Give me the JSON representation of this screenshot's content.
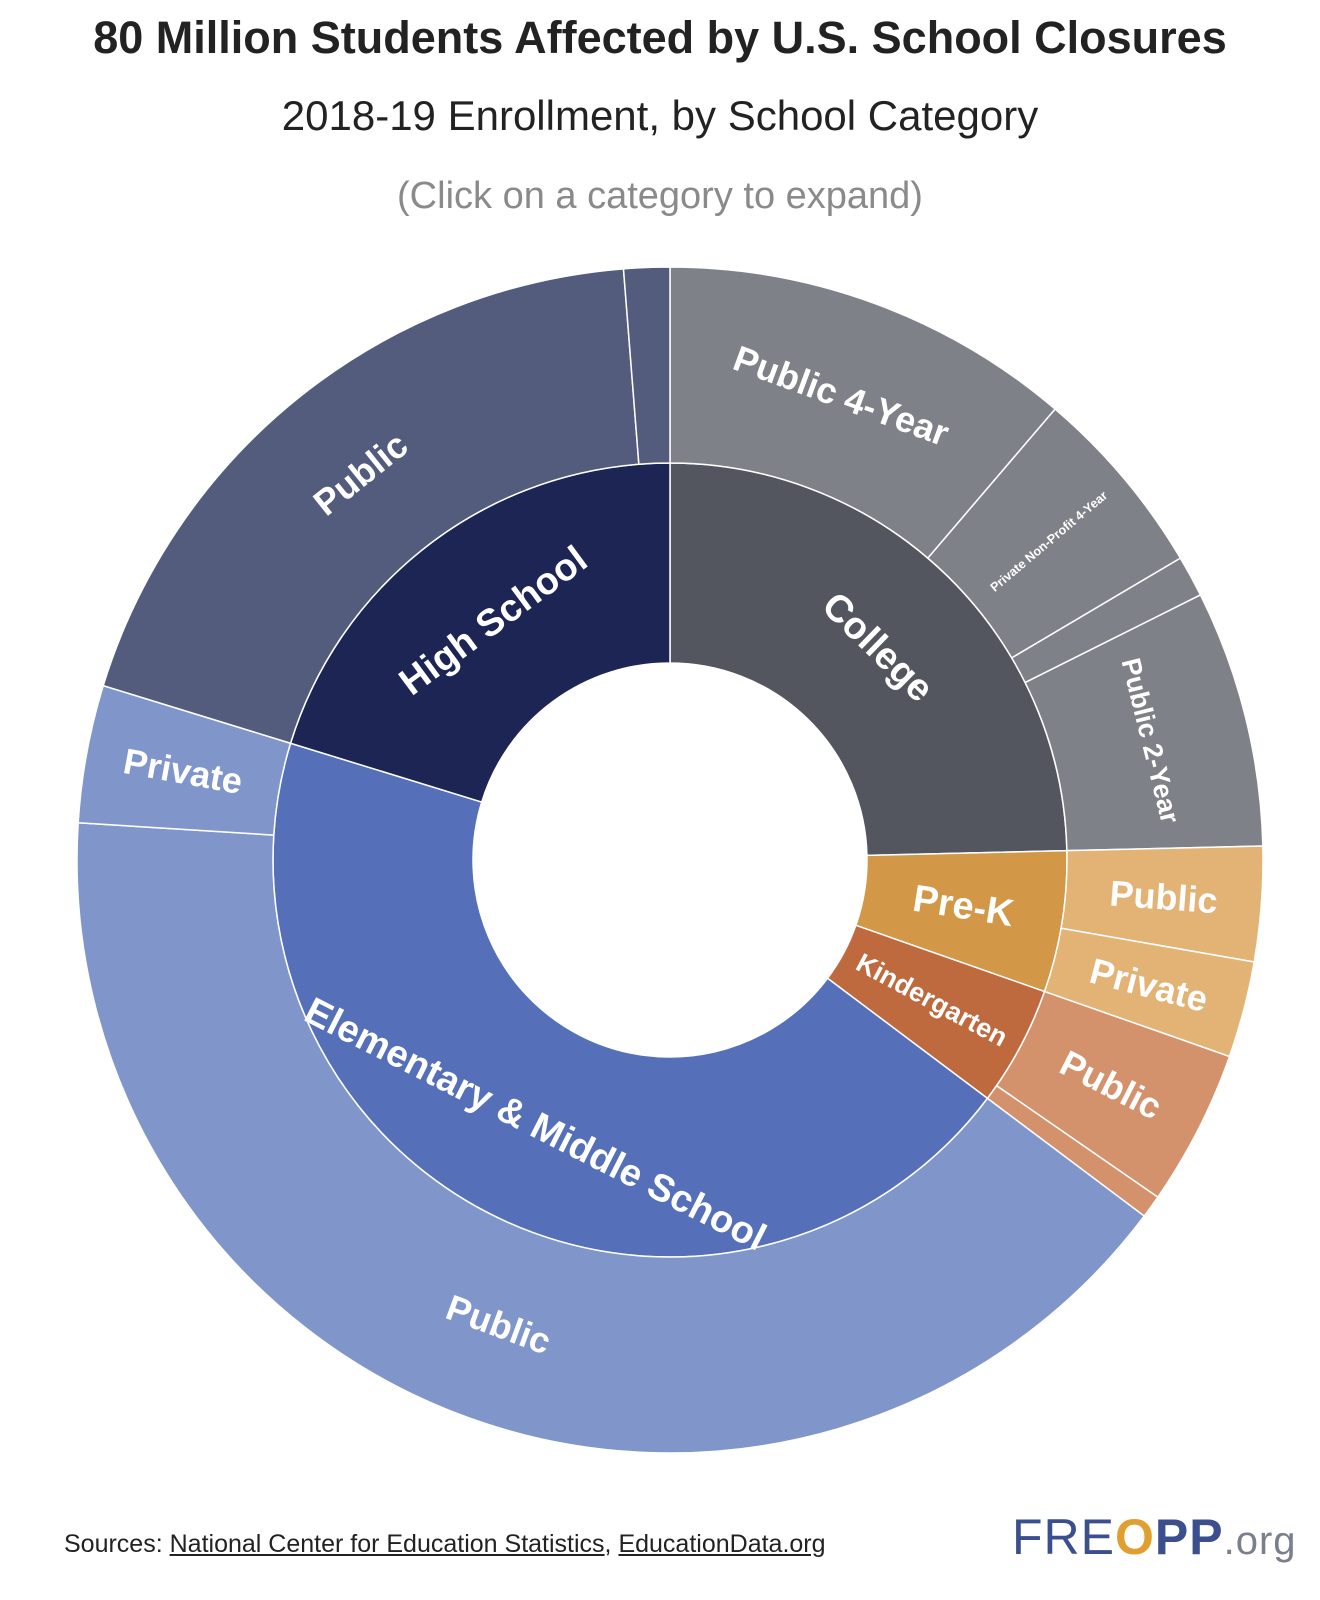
{
  "title": "80 Million Students Affected by U.S. School Closures",
  "subtitle": "2018-19 Enrollment, by School Category",
  "hint": "(Click on a category to expand)",
  "sources": {
    "prefix": "Sources: ",
    "links": [
      "National Center for Education Statistics",
      "EducationData.org"
    ],
    "separator": ", "
  },
  "logo": {
    "fre": "FRE",
    "o": "O",
    "pp": "PP",
    "org": ".org"
  },
  "chart_data": {
    "type": "sunburst",
    "unit": "students (millions)",
    "total": 80.0,
    "children": [
      {
        "name": "College",
        "value": 19.7,
        "color": "#53565f",
        "children": [
          {
            "name": "Public 4-Year",
            "value": 9.0,
            "color": "#7e8187"
          },
          {
            "name": "Private Non-Profit 4-Year",
            "value": 4.2,
            "color": "#7e8187"
          },
          {
            "name": "",
            "value": 0.9,
            "color": "#7e8187"
          },
          {
            "name": "Public 2-Year",
            "value": 5.6,
            "color": "#7e8187"
          }
        ]
      },
      {
        "name": "Pre-K",
        "value": 4.6,
        "color": "#d29747",
        "children": [
          {
            "name": "Public",
            "value": 2.5,
            "color": "#e3b376"
          },
          {
            "name": "Private",
            "value": 2.1,
            "color": "#e3b376"
          }
        ]
      },
      {
        "name": "Kindergarten",
        "value": 3.9,
        "color": "#bf6a3e",
        "children": [
          {
            "name": "Public",
            "value": 3.4,
            "color": "#d3926c"
          },
          {
            "name": "",
            "value": 0.5,
            "color": "#d3926c"
          }
        ]
      },
      {
        "name": "Elementary & Middle School",
        "value": 35.6,
        "color": "#5570b8",
        "children": [
          {
            "name": "Public",
            "value": 32.6,
            "color": "#8096ca"
          },
          {
            "name": "Private",
            "value": 3.0,
            "color": "#8096ca"
          }
        ]
      },
      {
        "name": "High School",
        "value": 16.2,
        "color": "#1c2553",
        "children": [
          {
            "name": "Public",
            "value": 15.2,
            "color": "#545c7e"
          },
          {
            "name": "",
            "value": 1.0,
            "color": "#545c7e"
          }
        ]
      }
    ]
  }
}
